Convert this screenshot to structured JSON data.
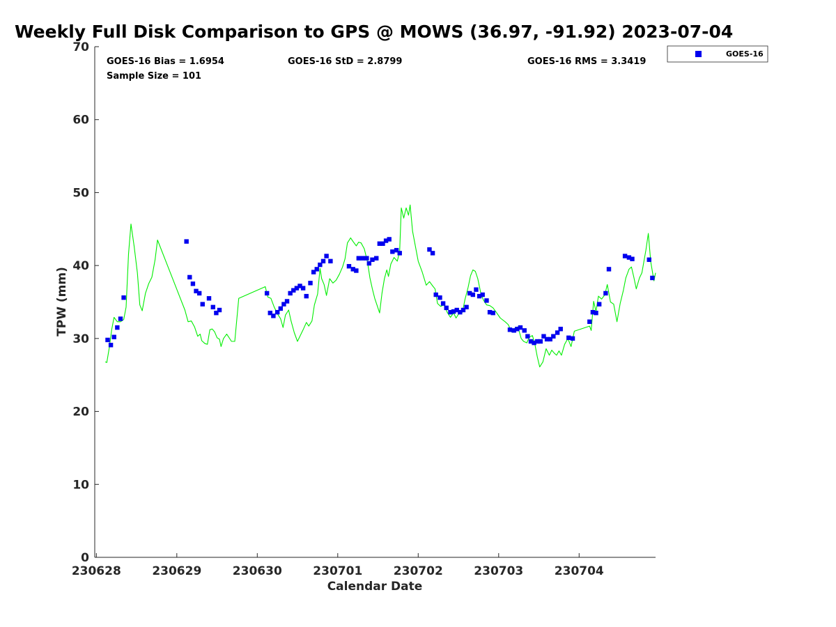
{
  "chart_data": {
    "type": "scatter",
    "title": "Weekly Full Disk Comparison to GPS @ MOWS (36.97, -91.92) 2023-07-04",
    "xlabel": "Calendar Date",
    "ylabel": "TPW (mm)",
    "xlim": [
      -0.02,
      6.95
    ],
    "ylim": [
      0,
      70
    ],
    "yticks": [
      0,
      10,
      20,
      30,
      40,
      50,
      60,
      70
    ],
    "xticks": [
      {
        "pos": 0,
        "label": "230628"
      },
      {
        "pos": 1,
        "label": "230629"
      },
      {
        "pos": 2,
        "label": "230630"
      },
      {
        "pos": 3,
        "label": "230701"
      },
      {
        "pos": 4,
        "label": "230702"
      },
      {
        "pos": 5,
        "label": "230703"
      },
      {
        "pos": 6,
        "label": "230704"
      }
    ],
    "stats": {
      "bias": "GOES-16 Bias = 1.6954",
      "std": "GOES-16 StD = 2.8799",
      "rms": "GOES-16 RMS = 3.3419",
      "sample": "Sample Size = 101"
    },
    "legend": {
      "label": "GOES-16",
      "position": "top-right outside"
    },
    "colors": {
      "goes": "#0000ee",
      "gps": "#00ee00",
      "axis": "#262626"
    },
    "series": [
      {
        "name": "GOES-16",
        "marker": "square",
        "points": [
          [
            0.14,
            29.8
          ],
          [
            0.18,
            29.1
          ],
          [
            0.22,
            30.2
          ],
          [
            0.26,
            31.5
          ],
          [
            0.3,
            32.7
          ],
          [
            0.34,
            35.6
          ],
          [
            1.12,
            43.3
          ],
          [
            1.16,
            38.4
          ],
          [
            1.2,
            37.5
          ],
          [
            1.24,
            36.5
          ],
          [
            1.28,
            36.2
          ],
          [
            1.32,
            34.7
          ],
          [
            1.4,
            35.5
          ],
          [
            1.45,
            34.3
          ],
          [
            1.49,
            33.5
          ],
          [
            1.53,
            33.9
          ],
          [
            2.12,
            36.2
          ],
          [
            2.16,
            33.5
          ],
          [
            2.2,
            33.1
          ],
          [
            2.25,
            33.6
          ],
          [
            2.29,
            34.1
          ],
          [
            2.33,
            34.7
          ],
          [
            2.37,
            35.1
          ],
          [
            2.41,
            36.2
          ],
          [
            2.45,
            36.6
          ],
          [
            2.49,
            36.9
          ],
          [
            2.53,
            37.2
          ],
          [
            2.57,
            36.9
          ],
          [
            2.61,
            35.8
          ],
          [
            2.66,
            37.6
          ],
          [
            2.7,
            39.1
          ],
          [
            2.74,
            39.5
          ],
          [
            2.78,
            40.1
          ],
          [
            2.82,
            40.6
          ],
          [
            2.86,
            41.3
          ],
          [
            2.91,
            40.6
          ],
          [
            3.14,
            39.9
          ],
          [
            3.19,
            39.5
          ],
          [
            3.23,
            39.3
          ],
          [
            3.26,
            41.0
          ],
          [
            3.31,
            41.0
          ],
          [
            3.36,
            41.0
          ],
          [
            3.39,
            40.3
          ],
          [
            3.43,
            40.8
          ],
          [
            3.48,
            41.0
          ],
          [
            3.52,
            43.0
          ],
          [
            3.56,
            43.0
          ],
          [
            3.6,
            43.4
          ],
          [
            3.64,
            43.6
          ],
          [
            3.68,
            41.9
          ],
          [
            3.73,
            42.1
          ],
          [
            3.77,
            41.7
          ],
          [
            4.14,
            42.2
          ],
          [
            4.18,
            41.7
          ],
          [
            4.22,
            36.0
          ],
          [
            4.27,
            35.6
          ],
          [
            4.31,
            34.8
          ],
          [
            4.35,
            34.2
          ],
          [
            4.4,
            33.6
          ],
          [
            4.44,
            33.7
          ],
          [
            4.48,
            33.9
          ],
          [
            4.52,
            33.6
          ],
          [
            4.56,
            33.9
          ],
          [
            4.6,
            34.3
          ],
          [
            4.64,
            36.2
          ],
          [
            4.68,
            36.0
          ],
          [
            4.72,
            36.7
          ],
          [
            4.76,
            35.8
          ],
          [
            4.8,
            36.0
          ],
          [
            4.85,
            35.2
          ],
          [
            4.89,
            33.6
          ],
          [
            4.93,
            33.5
          ],
          [
            5.14,
            31.2
          ],
          [
            5.19,
            31.1
          ],
          [
            5.23,
            31.3
          ],
          [
            5.27,
            31.5
          ],
          [
            5.32,
            31.1
          ],
          [
            5.36,
            30.3
          ],
          [
            5.4,
            29.6
          ],
          [
            5.44,
            29.4
          ],
          [
            5.48,
            29.6
          ],
          [
            5.52,
            29.6
          ],
          [
            5.56,
            30.3
          ],
          [
            5.6,
            29.9
          ],
          [
            5.64,
            29.9
          ],
          [
            5.68,
            30.3
          ],
          [
            5.73,
            30.8
          ],
          [
            5.77,
            31.3
          ],
          [
            5.87,
            30.1
          ],
          [
            5.92,
            30.0
          ],
          [
            6.13,
            32.3
          ],
          [
            6.17,
            33.6
          ],
          [
            6.21,
            33.5
          ],
          [
            6.25,
            34.7
          ],
          [
            6.33,
            36.2
          ],
          [
            6.37,
            39.5
          ],
          [
            6.57,
            41.3
          ],
          [
            6.62,
            41.1
          ],
          [
            6.66,
            40.9
          ],
          [
            6.87,
            40.8
          ],
          [
            6.91,
            38.3
          ]
        ]
      },
      {
        "name": "GPS",
        "marker": "line",
        "points": [
          [
            0.11,
            26.8
          ],
          [
            0.13,
            26.7
          ],
          [
            0.16,
            28.7
          ],
          [
            0.19,
            31.2
          ],
          [
            0.22,
            32.9
          ],
          [
            0.26,
            32.3
          ],
          [
            0.3,
            32.3
          ],
          [
            0.34,
            32.6
          ],
          [
            0.37,
            34.3
          ],
          [
            0.4,
            41.6
          ],
          [
            0.43,
            45.7
          ],
          [
            0.47,
            42.6
          ],
          [
            0.51,
            39.0
          ],
          [
            0.54,
            34.6
          ],
          [
            0.57,
            33.8
          ],
          [
            0.61,
            36.2
          ],
          [
            0.65,
            37.5
          ],
          [
            0.69,
            38.4
          ],
          [
            0.73,
            40.8
          ],
          [
            0.76,
            43.5
          ],
          [
            1.1,
            33.9
          ],
          [
            1.14,
            32.3
          ],
          [
            1.18,
            32.4
          ],
          [
            1.22,
            31.6
          ],
          [
            1.26,
            30.3
          ],
          [
            1.29,
            30.6
          ],
          [
            1.31,
            29.7
          ],
          [
            1.35,
            29.3
          ],
          [
            1.38,
            29.2
          ],
          [
            1.41,
            31.2
          ],
          [
            1.44,
            31.3
          ],
          [
            1.47,
            30.9
          ],
          [
            1.5,
            30.1
          ],
          [
            1.53,
            29.9
          ],
          [
            1.55,
            28.9
          ],
          [
            1.58,
            30.0
          ],
          [
            1.62,
            30.6
          ],
          [
            1.65,
            30.1
          ],
          [
            1.68,
            29.6
          ],
          [
            1.72,
            29.6
          ],
          [
            1.77,
            35.5
          ],
          [
            2.1,
            37.1
          ],
          [
            2.13,
            35.7
          ],
          [
            2.17,
            35.5
          ],
          [
            2.21,
            34.3
          ],
          [
            2.25,
            33.4
          ],
          [
            2.29,
            32.7
          ],
          [
            2.32,
            31.5
          ],
          [
            2.35,
            33.2
          ],
          [
            2.39,
            33.9
          ],
          [
            2.42,
            32.4
          ],
          [
            2.46,
            30.8
          ],
          [
            2.5,
            29.6
          ],
          [
            2.53,
            30.3
          ],
          [
            2.57,
            31.2
          ],
          [
            2.61,
            32.2
          ],
          [
            2.64,
            31.7
          ],
          [
            2.68,
            32.4
          ],
          [
            2.71,
            34.6
          ],
          [
            2.75,
            36.1
          ],
          [
            2.78,
            39.6
          ],
          [
            2.8,
            38.2
          ],
          [
            2.83,
            37.4
          ],
          [
            2.86,
            35.9
          ],
          [
            2.9,
            38.2
          ],
          [
            2.94,
            37.6
          ],
          [
            2.98,
            38.0
          ],
          [
            3.02,
            38.8
          ],
          [
            3.06,
            39.8
          ],
          [
            3.09,
            40.9
          ],
          [
            3.12,
            43.1
          ],
          [
            3.16,
            43.8
          ],
          [
            3.19,
            43.3
          ],
          [
            3.23,
            42.7
          ],
          [
            3.26,
            43.2
          ],
          [
            3.29,
            43.1
          ],
          [
            3.33,
            42.3
          ],
          [
            3.37,
            40.5
          ],
          [
            3.4,
            38.3
          ],
          [
            3.43,
            36.8
          ],
          [
            3.46,
            35.5
          ],
          [
            3.49,
            34.5
          ],
          [
            3.52,
            33.5
          ],
          [
            3.55,
            36.2
          ],
          [
            3.58,
            38.2
          ],
          [
            3.61,
            39.4
          ],
          [
            3.63,
            38.5
          ],
          [
            3.66,
            40.2
          ],
          [
            3.7,
            41.1
          ],
          [
            3.74,
            40.6
          ],
          [
            3.77,
            42.0
          ],
          [
            3.79,
            47.9
          ],
          [
            3.82,
            46.5
          ],
          [
            3.85,
            47.9
          ],
          [
            3.88,
            46.9
          ],
          [
            3.9,
            48.3
          ],
          [
            3.93,
            44.7
          ],
          [
            4.0,
            40.6
          ],
          [
            4.05,
            39.1
          ],
          [
            4.1,
            37.3
          ],
          [
            4.14,
            37.8
          ],
          [
            4.18,
            37.2
          ],
          [
            4.21,
            36.8
          ],
          [
            4.24,
            34.8
          ],
          [
            4.28,
            34.4
          ],
          [
            4.32,
            34.6
          ],
          [
            4.36,
            33.6
          ],
          [
            4.4,
            32.9
          ],
          [
            4.44,
            33.5
          ],
          [
            4.47,
            32.8
          ],
          [
            4.51,
            33.5
          ],
          [
            4.55,
            33.6
          ],
          [
            4.58,
            35.3
          ],
          [
            4.62,
            37.0
          ],
          [
            4.65,
            38.6
          ],
          [
            4.68,
            39.4
          ],
          [
            4.71,
            39.2
          ],
          [
            4.74,
            38.2
          ],
          [
            4.78,
            36.1
          ],
          [
            4.81,
            35.3
          ],
          [
            4.85,
            34.6
          ],
          [
            4.89,
            34.5
          ],
          [
            4.93,
            34.2
          ],
          [
            4.97,
            33.6
          ],
          [
            5.02,
            32.8
          ],
          [
            5.08,
            32.3
          ],
          [
            5.12,
            31.9
          ],
          [
            5.16,
            30.9
          ],
          [
            5.2,
            31.4
          ],
          [
            5.24,
            31.6
          ],
          [
            5.28,
            30.0
          ],
          [
            5.31,
            29.6
          ],
          [
            5.35,
            29.4
          ],
          [
            5.38,
            30.2
          ],
          [
            5.42,
            30.4
          ],
          [
            5.45,
            29.2
          ],
          [
            5.48,
            27.5
          ],
          [
            5.51,
            26.1
          ],
          [
            5.55,
            26.8
          ],
          [
            5.59,
            28.6
          ],
          [
            5.63,
            27.7
          ],
          [
            5.66,
            28.4
          ],
          [
            5.69,
            28.0
          ],
          [
            5.72,
            27.7
          ],
          [
            5.75,
            28.3
          ],
          [
            5.78,
            27.7
          ],
          [
            5.82,
            29.2
          ],
          [
            5.86,
            30.0
          ],
          [
            5.9,
            28.9
          ],
          [
            5.94,
            31.0
          ],
          [
            6.13,
            31.7
          ],
          [
            6.15,
            31.1
          ],
          [
            6.18,
            35.1
          ],
          [
            6.21,
            33.7
          ],
          [
            6.24,
            35.8
          ],
          [
            6.28,
            35.4
          ],
          [
            6.32,
            36.0
          ],
          [
            6.35,
            37.4
          ],
          [
            6.39,
            35.0
          ],
          [
            6.43,
            34.7
          ],
          [
            6.47,
            32.3
          ],
          [
            6.51,
            34.8
          ],
          [
            6.55,
            36.6
          ],
          [
            6.58,
            38.3
          ],
          [
            6.62,
            39.5
          ],
          [
            6.65,
            39.8
          ],
          [
            6.68,
            38.4
          ],
          [
            6.71,
            36.8
          ],
          [
            6.75,
            38.3
          ],
          [
            6.78,
            39.0
          ],
          [
            6.83,
            42.1
          ],
          [
            6.86,
            44.4
          ],
          [
            6.89,
            40.5
          ],
          [
            6.93,
            37.9
          ],
          [
            6.95,
            39.0
          ]
        ]
      }
    ]
  }
}
